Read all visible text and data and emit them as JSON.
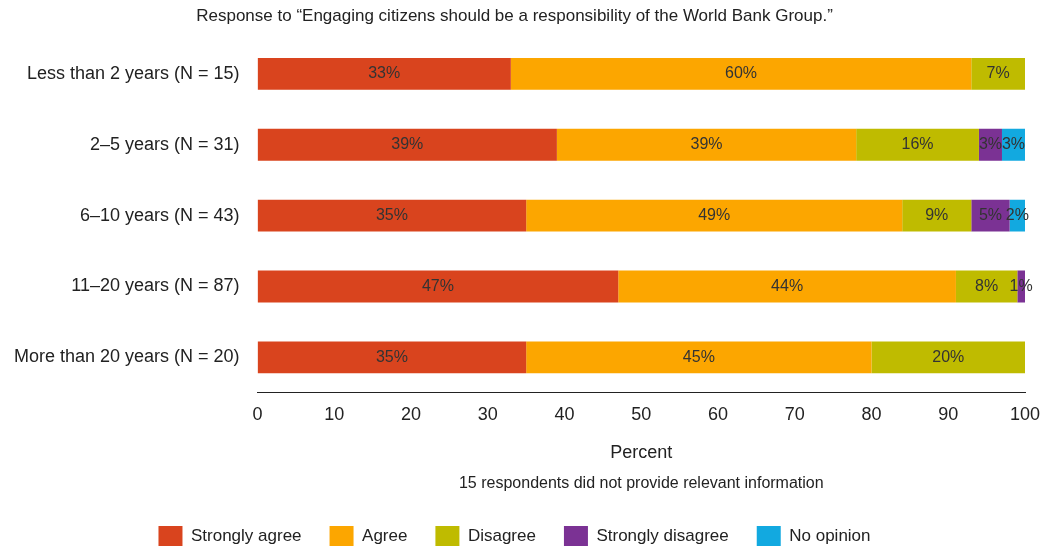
{
  "chart_data": {
    "type": "bar",
    "orientation": "horizontal",
    "stacked": true,
    "title": "Response to “Engaging citizens should be a responsibility of the World Bank Group.”",
    "xlabel": "Percent",
    "annotations": [
      "15 respondents did not provide relevant information"
    ],
    "categories": [
      "Less than 2 years (N = 15)",
      "2–5 years (N = 31)",
      "6–10 years (N = 43)",
      "11–20 years (N = 87)",
      "More than 20 years (N = 20)"
    ],
    "series": [
      {
        "name": "Strongly agree",
        "color": "#d9441e",
        "values": [
          33,
          39,
          35,
          47,
          35
        ],
        "value_labels": [
          "33%",
          "39%",
          "35%",
          "47%",
          "35%"
        ]
      },
      {
        "name": "Agree",
        "color": "#fca600",
        "values": [
          60,
          39,
          49,
          44,
          45
        ],
        "value_labels": [
          "60%",
          "39%",
          "49%",
          "44%",
          "45%"
        ]
      },
      {
        "name": "Disagree",
        "color": "#bfbb00",
        "values": [
          7,
          16,
          9,
          8,
          20
        ],
        "value_labels": [
          "7%",
          "16%",
          "9%",
          "8%",
          "20%"
        ]
      },
      {
        "name": "Strongly disagree",
        "color": "#7b3294",
        "values": [
          0,
          3,
          5,
          1,
          0
        ],
        "value_labels": [
          null,
          "3%",
          "5%",
          "1%",
          null
        ]
      },
      {
        "name": "No opinion",
        "color": "#12a9e0",
        "values": [
          0,
          3,
          2,
          0,
          0
        ],
        "value_labels": [
          null,
          "3%",
          "2%",
          null,
          null
        ]
      }
    ],
    "xlim": [
      0,
      100
    ],
    "xticks": [
      0,
      10,
      20,
      30,
      40,
      50,
      60,
      70,
      80,
      90,
      100
    ],
    "grid": false,
    "legend": "bottom"
  }
}
